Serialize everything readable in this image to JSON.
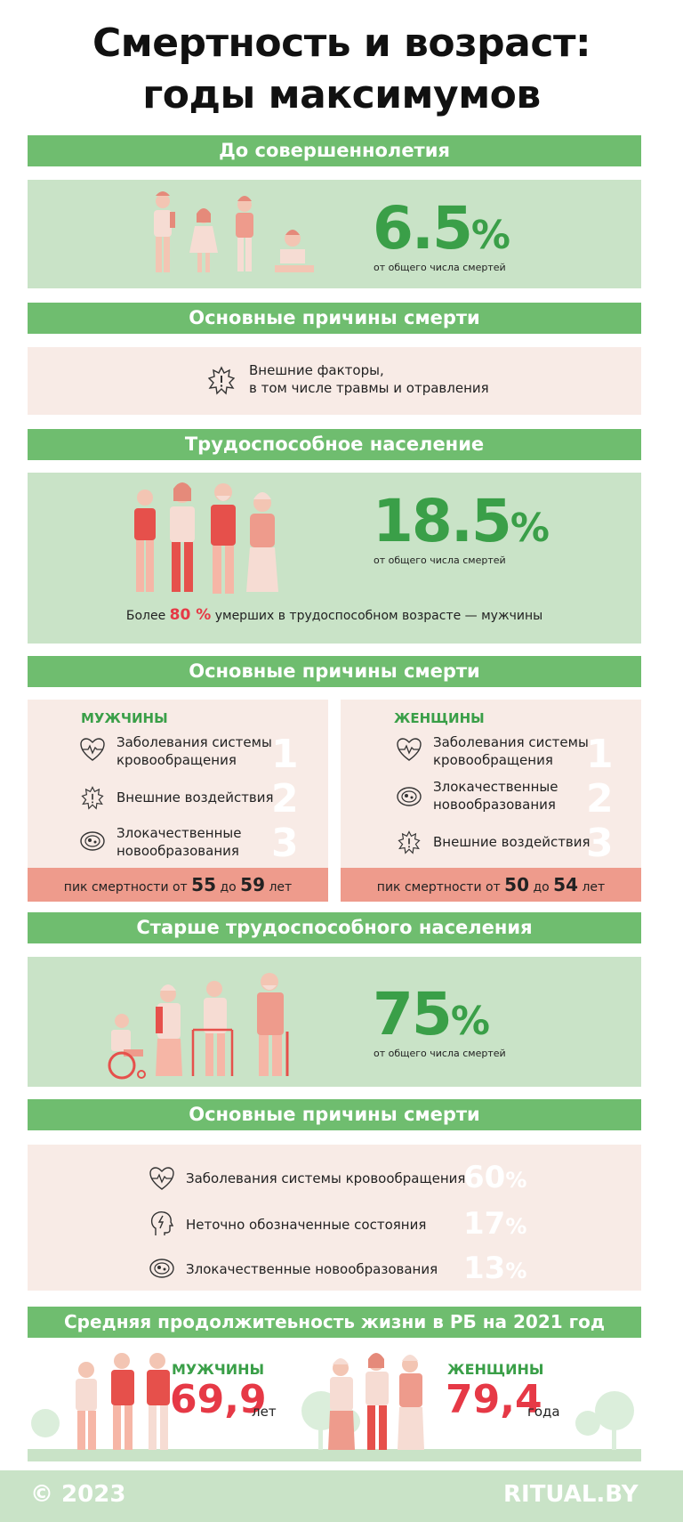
{
  "title_line1": "Смертность и возраст:",
  "title_line2": "годы максимумов",
  "sec1": {
    "header": "До совершеннолетия",
    "pct": "6.5",
    "pct_sign": "%",
    "sub": "от общего числа смертей",
    "causes_header": "Основные причины смерти",
    "cause_line1": "Внешние факторы,",
    "cause_line2": "в том числе травмы и отравления"
  },
  "sec2": {
    "header": "Трудоспособное население",
    "pct": "18.5",
    "pct_sign": "%",
    "sub": "от общего числа смертей",
    "note_pre": "Более",
    "note_num": "80 %",
    "note_post": "умерших в трудоспособном возрасте — мужчины",
    "causes_header": "Основные причины смерти",
    "men": {
      "label": "МУЖЧИНЫ",
      "c1a": "Заболевания системы",
      "c1b": "кровообращения",
      "c2": "Внешние воздействия",
      "c3a": "Злокачественные",
      "c3b": "новообразования",
      "peak_pre": "пик смертности от",
      "peak_from": "55",
      "peak_mid": "до",
      "peak_to": "59",
      "peak_post": "лет"
    },
    "women": {
      "label": "ЖЕНЩИНЫ",
      "c1a": "Заболевания системы",
      "c1b": "кровообращения",
      "c2a": "Злокачественные",
      "c2b": "новообразования",
      "c3": "Внешние воздействия",
      "peak_pre": "пик смертности от",
      "peak_from": "50",
      "peak_mid": "до",
      "peak_to": "54",
      "peak_post": "лет"
    },
    "ranks": [
      "1",
      "2",
      "3"
    ]
  },
  "sec3": {
    "header": "Старше трудоспособного населения",
    "pct": "75",
    "pct_sign": "%",
    "sub": "от общего числа смертей",
    "causes_header": "Основные причины смерти",
    "causes": [
      {
        "label": "Заболевания системы кровообращения",
        "pct": "60",
        "icon": "heart-pulse-icon"
      },
      {
        "label": "Неточно обозначенные состояния",
        "pct": "17",
        "icon": "head-lightning-icon"
      },
      {
        "label": "Злокачественные новообразования",
        "pct": "13",
        "icon": "cells-icon"
      }
    ]
  },
  "sec4": {
    "header": "Средняя продолжитеьность жизни в РБ на 2021 год",
    "men_label": "МУЖЧИНЫ",
    "men_value": "69,9",
    "men_unit": "лет",
    "women_label": "ЖЕНЩИНЫ",
    "women_value": "79,4",
    "women_unit": "года"
  },
  "footer": {
    "copyright": "© 2023",
    "brand": "RITUAL.BY"
  },
  "colors": {
    "green_bar": "#6fbd6f",
    "green_panel": "#c9e3c7",
    "pink_panel": "#f8ebe6",
    "salmon": "#ee9b8c",
    "accent_green": "#3a9f48",
    "accent_red": "#e63946"
  }
}
